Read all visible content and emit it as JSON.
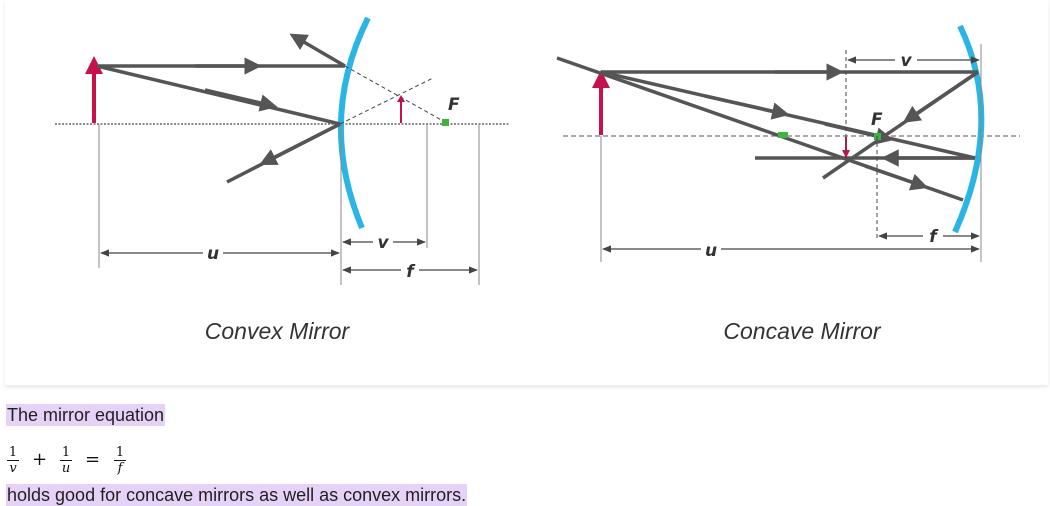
{
  "convex": {
    "caption": "Convex Mirror",
    "label_u": "u",
    "label_v": "v",
    "label_f": "f",
    "label_focus": "F"
  },
  "concave": {
    "caption": "Concave Mirror",
    "label_u": "u",
    "label_v": "v",
    "label_f": "f",
    "label_focus": "F"
  },
  "text": {
    "intro": "The mirror equation",
    "outro": "holds good for concave mirrors as well as convex mirrors."
  },
  "equation": {
    "term1_num": "1",
    "term1_den": "v",
    "plus": "+",
    "term2_num": "1",
    "term2_den": "u",
    "equals": "=",
    "term3_num": "1",
    "term3_den": "f"
  },
  "colors": {
    "mirror": "#29b6e6",
    "object": "#c8104a",
    "focus": "#3cb53c",
    "ray": "#555555",
    "highlight": "#e6d2f7"
  }
}
